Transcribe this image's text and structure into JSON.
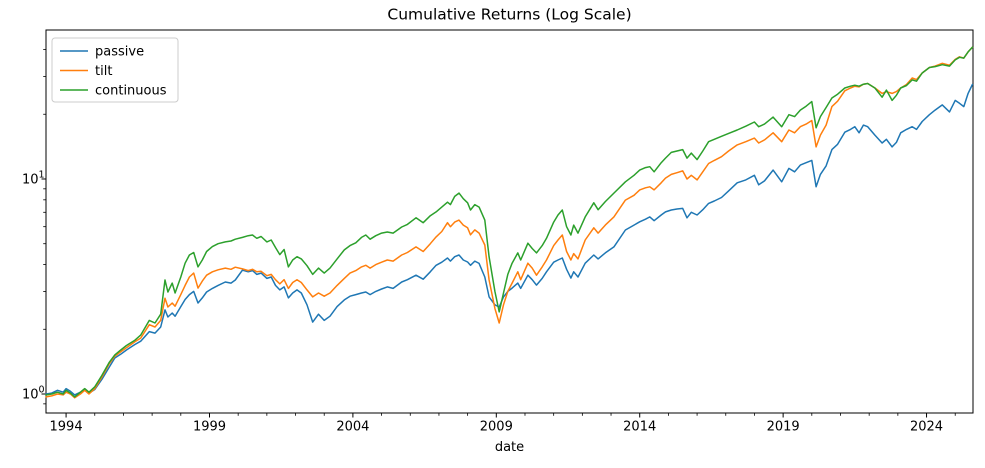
{
  "chart_data": {
    "type": "line",
    "title": "Cumulative Returns (Log Scale)",
    "xlabel": "date",
    "ylabel": "",
    "yscale": "log",
    "grid": false,
    "legend_position": "upper left",
    "xlim": [
      1993.3,
      2025.62
    ],
    "ylim": [
      0.816,
      49.3
    ],
    "xticks": [
      1994,
      1999,
      2004,
      2009,
      2014,
      2019,
      2024
    ],
    "xticks_minor": [
      1995,
      1996,
      1997,
      1998,
      2000,
      2001,
      2002,
      2003,
      2005,
      2006,
      2007,
      2008,
      2010,
      2011,
      2012,
      2013,
      2015,
      2016,
      2017,
      2018,
      2020,
      2021,
      2022,
      2023,
      2025
    ],
    "yticks": [
      {
        "value": 1,
        "base": "10",
        "exponent": "0"
      },
      {
        "value": 10,
        "base": "10",
        "exponent": "1"
      }
    ],
    "yticks_minor": [
      0.9,
      2,
      3,
      4,
      5,
      6,
      7,
      8,
      9,
      20,
      30,
      40
    ],
    "x": [
      1993.3,
      1993.5,
      1993.7,
      1993.9,
      1994.0,
      1994.15,
      1994.3,
      1994.5,
      1994.65,
      1994.8,
      1995.0,
      1995.25,
      1995.5,
      1995.7,
      1995.9,
      1996.1,
      1996.4,
      1996.6,
      1996.9,
      1997.1,
      1997.3,
      1997.45,
      1997.55,
      1997.7,
      1997.8,
      1998.0,
      1998.15,
      1998.3,
      1998.45,
      1998.6,
      1998.75,
      1998.9,
      1999.1,
      1999.3,
      1999.55,
      1999.75,
      1999.9,
      2000.15,
      2000.35,
      2000.5,
      2000.65,
      2000.8,
      2001.0,
      2001.15,
      2001.3,
      2001.45,
      2001.6,
      2001.75,
      2001.9,
      2002.05,
      2002.2,
      2002.4,
      2002.6,
      2002.8,
      2003.0,
      2003.2,
      2003.45,
      2003.7,
      2003.9,
      2004.1,
      2004.3,
      2004.45,
      2004.6,
      2004.8,
      2005.0,
      2005.2,
      2005.4,
      2005.7,
      2005.9,
      2006.2,
      2006.45,
      2006.7,
      2006.9,
      2007.1,
      2007.3,
      2007.4,
      2007.55,
      2007.7,
      2007.85,
      2008.0,
      2008.1,
      2008.25,
      2008.4,
      2008.6,
      2008.75,
      2008.95,
      2009.1,
      2009.25,
      2009.4,
      2009.55,
      2009.75,
      2009.85,
      2010.1,
      2010.25,
      2010.4,
      2010.6,
      2010.75,
      2011.0,
      2011.15,
      2011.3,
      2011.45,
      2011.6,
      2011.7,
      2011.85,
      2012.1,
      2012.4,
      2012.55,
      2012.8,
      2013.1,
      2013.5,
      2013.8,
      2014.0,
      2014.2,
      2014.35,
      2014.5,
      2014.75,
      2014.9,
      2015.1,
      2015.3,
      2015.5,
      2015.65,
      2015.8,
      2016.0,
      2016.2,
      2016.4,
      2016.6,
      2016.85,
      2017.1,
      2017.4,
      2017.7,
      2018.0,
      2018.15,
      2018.35,
      2018.65,
      2018.95,
      2019.2,
      2019.4,
      2019.6,
      2019.8,
      2020.0,
      2020.15,
      2020.3,
      2020.5,
      2020.7,
      2020.9,
      2021.15,
      2021.35,
      2021.5,
      2021.65,
      2021.8,
      2021.95,
      2022.2,
      2022.45,
      2022.6,
      2022.8,
      2022.95,
      2023.1,
      2023.3,
      2023.5,
      2023.65,
      2023.85,
      2024.1,
      2024.3,
      2024.55,
      2024.8,
      2025.0,
      2025.15,
      2025.3,
      2025.45,
      2025.6
    ],
    "series": [
      {
        "name": "passive",
        "color": "#1f77b4",
        "values": [
          1.0,
          1.01,
          1.04,
          1.02,
          1.06,
          1.03,
          0.99,
          1.02,
          1.05,
          1.01,
          1.05,
          1.17,
          1.33,
          1.47,
          1.53,
          1.6,
          1.7,
          1.76,
          1.95,
          1.92,
          2.05,
          2.46,
          2.28,
          2.38,
          2.3,
          2.55,
          2.75,
          2.9,
          3.0,
          2.65,
          2.8,
          2.98,
          3.1,
          3.2,
          3.32,
          3.28,
          3.39,
          3.77,
          3.7,
          3.75,
          3.6,
          3.65,
          3.45,
          3.5,
          3.2,
          3.05,
          3.15,
          2.8,
          2.95,
          3.05,
          2.95,
          2.6,
          2.16,
          2.35,
          2.2,
          2.3,
          2.55,
          2.74,
          2.85,
          2.9,
          2.95,
          2.98,
          2.9,
          3.0,
          3.08,
          3.15,
          3.1,
          3.32,
          3.4,
          3.57,
          3.42,
          3.7,
          3.97,
          4.1,
          4.29,
          4.15,
          4.35,
          4.43,
          4.2,
          4.11,
          3.97,
          4.15,
          4.05,
          3.5,
          2.83,
          2.6,
          2.54,
          2.83,
          3.0,
          3.11,
          3.28,
          3.1,
          3.57,
          3.4,
          3.21,
          3.45,
          3.7,
          4.1,
          4.2,
          4.29,
          3.8,
          3.46,
          3.7,
          3.5,
          4.06,
          4.43,
          4.25,
          4.53,
          4.83,
          5.79,
          6.1,
          6.32,
          6.5,
          6.66,
          6.4,
          6.8,
          7.03,
          7.17,
          7.25,
          7.3,
          6.6,
          7.0,
          6.8,
          7.2,
          7.7,
          7.9,
          8.2,
          8.8,
          9.6,
          9.9,
          10.4,
          9.4,
          9.8,
          11.0,
          9.7,
          11.2,
          10.8,
          11.6,
          11.9,
          12.2,
          9.2,
          10.5,
          11.5,
          13.7,
          14.5,
          16.5,
          17.0,
          17.5,
          16.4,
          17.8,
          17.5,
          16.0,
          14.7,
          15.3,
          14.1,
          14.8,
          16.4,
          17.0,
          17.5,
          17.0,
          18.5,
          19.9,
          20.9,
          22.1,
          20.5,
          23.2,
          22.5,
          21.7,
          25.0,
          27.5
        ]
      },
      {
        "name": "tilt",
        "color": "#ff7f0e",
        "values": [
          0.97,
          0.98,
          1.0,
          0.99,
          1.02,
          1.0,
          0.96,
          1.0,
          1.04,
          1.0,
          1.06,
          1.2,
          1.38,
          1.5,
          1.57,
          1.64,
          1.75,
          1.82,
          2.1,
          2.05,
          2.2,
          2.79,
          2.54,
          2.65,
          2.56,
          2.9,
          3.2,
          3.5,
          3.65,
          3.11,
          3.35,
          3.57,
          3.7,
          3.78,
          3.85,
          3.8,
          3.89,
          3.82,
          3.75,
          3.8,
          3.7,
          3.72,
          3.55,
          3.6,
          3.4,
          3.25,
          3.4,
          3.1,
          3.3,
          3.4,
          3.3,
          3.05,
          2.83,
          2.95,
          2.85,
          2.95,
          3.2,
          3.45,
          3.65,
          3.75,
          3.9,
          3.97,
          3.85,
          4.0,
          4.1,
          4.2,
          4.15,
          4.43,
          4.55,
          4.83,
          4.6,
          5.0,
          5.38,
          5.7,
          6.26,
          6.0,
          6.3,
          6.44,
          6.1,
          5.93,
          5.5,
          5.8,
          5.6,
          4.93,
          3.39,
          2.5,
          2.14,
          2.6,
          3.0,
          3.28,
          3.7,
          3.4,
          4.06,
          3.85,
          3.57,
          3.9,
          4.2,
          4.9,
          5.2,
          5.49,
          4.6,
          4.2,
          4.5,
          4.25,
          5.2,
          5.93,
          5.6,
          6.1,
          6.66,
          7.98,
          8.4,
          8.9,
          9.1,
          9.2,
          8.9,
          9.6,
          10.1,
          10.5,
          10.7,
          10.9,
          10.0,
          10.4,
          9.9,
          10.8,
          11.8,
          12.2,
          12.7,
          13.5,
          14.4,
          14.9,
          15.5,
          14.7,
          15.2,
          16.4,
          14.9,
          16.9,
          16.4,
          17.5,
          18.0,
          18.7,
          14.1,
          16.0,
          17.8,
          21.7,
          23.0,
          25.7,
          26.5,
          27.0,
          26.8,
          27.6,
          27.8,
          26.5,
          25.0,
          25.5,
          25.0,
          25.5,
          26.5,
          27.5,
          29.5,
          29.0,
          31.1,
          33.0,
          33.5,
          34.5,
          33.8,
          36.0,
          37.0,
          36.5,
          39.0,
          41.0
        ]
      },
      {
        "name": "continuous",
        "color": "#2ca02c",
        "values": [
          0.99,
          1.0,
          1.02,
          1.0,
          1.04,
          1.01,
          0.97,
          1.02,
          1.06,
          1.02,
          1.08,
          1.22,
          1.4,
          1.52,
          1.6,
          1.68,
          1.78,
          1.88,
          2.2,
          2.14,
          2.35,
          3.39,
          2.98,
          3.28,
          2.95,
          3.5,
          4.06,
          4.43,
          4.55,
          3.9,
          4.2,
          4.6,
          4.85,
          5.0,
          5.1,
          5.15,
          5.25,
          5.35,
          5.45,
          5.49,
          5.3,
          5.4,
          5.1,
          5.2,
          4.8,
          4.45,
          4.7,
          3.9,
          4.2,
          4.35,
          4.25,
          3.95,
          3.6,
          3.85,
          3.65,
          3.85,
          4.25,
          4.68,
          4.9,
          5.05,
          5.35,
          5.49,
          5.25,
          5.45,
          5.6,
          5.67,
          5.6,
          5.98,
          6.15,
          6.6,
          6.26,
          6.75,
          7.03,
          7.4,
          7.8,
          7.6,
          8.3,
          8.6,
          8.1,
          7.75,
          7.17,
          7.6,
          7.4,
          6.44,
          4.34,
          3.0,
          2.41,
          2.95,
          3.6,
          4.06,
          4.53,
          4.2,
          5.03,
          4.75,
          4.53,
          4.9,
          5.3,
          6.3,
          6.8,
          7.17,
          6.0,
          5.49,
          6.1,
          5.6,
          6.66,
          7.75,
          7.2,
          7.85,
          8.6,
          9.7,
          10.4,
          11.0,
          11.3,
          11.4,
          10.8,
          11.9,
          12.5,
          13.3,
          13.5,
          13.7,
          12.5,
          13.2,
          12.3,
          13.5,
          14.9,
          15.3,
          15.8,
          16.3,
          16.9,
          17.6,
          18.4,
          17.5,
          18.0,
          19.4,
          17.5,
          19.9,
          19.5,
          20.9,
          21.8,
          22.9,
          17.3,
          19.5,
          21.5,
          23.8,
          24.8,
          26.5,
          27.0,
          27.3,
          27.0,
          27.6,
          27.8,
          26.5,
          24.0,
          25.9,
          23.2,
          24.5,
          26.5,
          27.2,
          28.9,
          28.5,
          31.1,
          33.0,
          33.3,
          34.0,
          33.5,
          35.8,
          36.8,
          36.5,
          39.0,
          41.0
        ]
      }
    ],
    "style": {
      "spine_color": "#000000",
      "legend_border_color": "#cccccc",
      "legend_background": "#ffffff",
      "plot_background": "#ffffff",
      "line_width": 1.5
    }
  }
}
